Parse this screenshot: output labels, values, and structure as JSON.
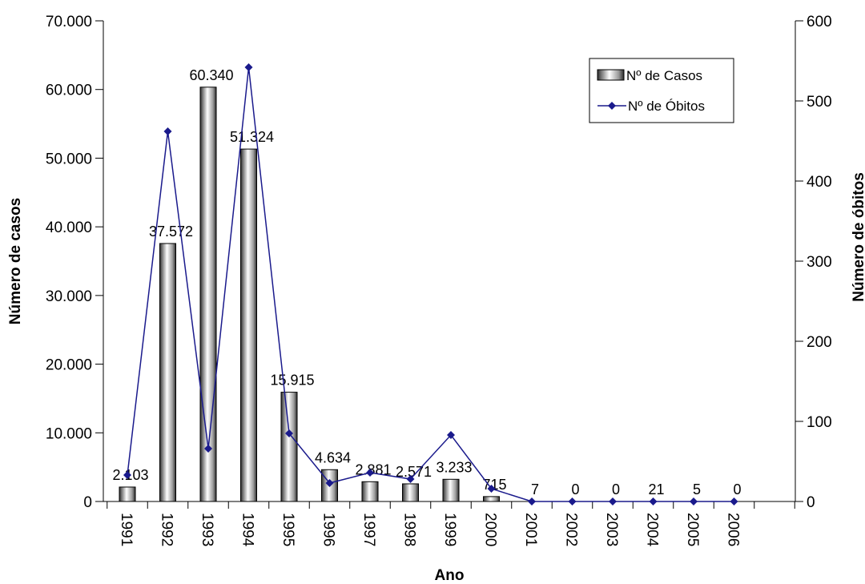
{
  "chart_data": {
    "type": "bar",
    "title": "",
    "xlabel": "Ano",
    "ylabel": "Número de casos",
    "y2label": "Número de óbitos",
    "categories": [
      "1991",
      "1992",
      "1993",
      "1994",
      "1995",
      "1996",
      "1997",
      "1998",
      "1999",
      "2000",
      "2001",
      "2002",
      "2003",
      "2004",
      "2005",
      "2006"
    ],
    "ylim": [
      0,
      70000
    ],
    "y2lim": [
      0,
      600
    ],
    "yticks": [
      "0",
      "10.000",
      "20.000",
      "30.000",
      "40.000",
      "50.000",
      "60.000",
      "70.000"
    ],
    "y2ticks": [
      "0",
      "100",
      "200",
      "300",
      "400",
      "500",
      "600"
    ],
    "grid": false,
    "legend_position": "top-right",
    "series": [
      {
        "name": "Nº de Casos",
        "type": "bar",
        "axis": "left",
        "values": [
          2103,
          37572,
          60340,
          51324,
          15915,
          4634,
          2881,
          2571,
          3233,
          715,
          7,
          0,
          0,
          21,
          5,
          0
        ],
        "labels": [
          "2.103",
          "37.572",
          "60.340",
          "51.324",
          "15.915",
          "4.634",
          "2.881",
          "2.571",
          "3.233",
          "715",
          "7",
          "0",
          "0",
          "21",
          "5",
          "0"
        ]
      },
      {
        "name": "Nº de Óbitos",
        "type": "line",
        "axis": "right",
        "color": "#1a1a8c",
        "values": [
          33,
          462,
          66,
          542,
          85,
          23,
          36,
          28,
          83,
          16,
          0,
          0,
          0,
          0,
          0,
          0
        ]
      }
    ]
  }
}
